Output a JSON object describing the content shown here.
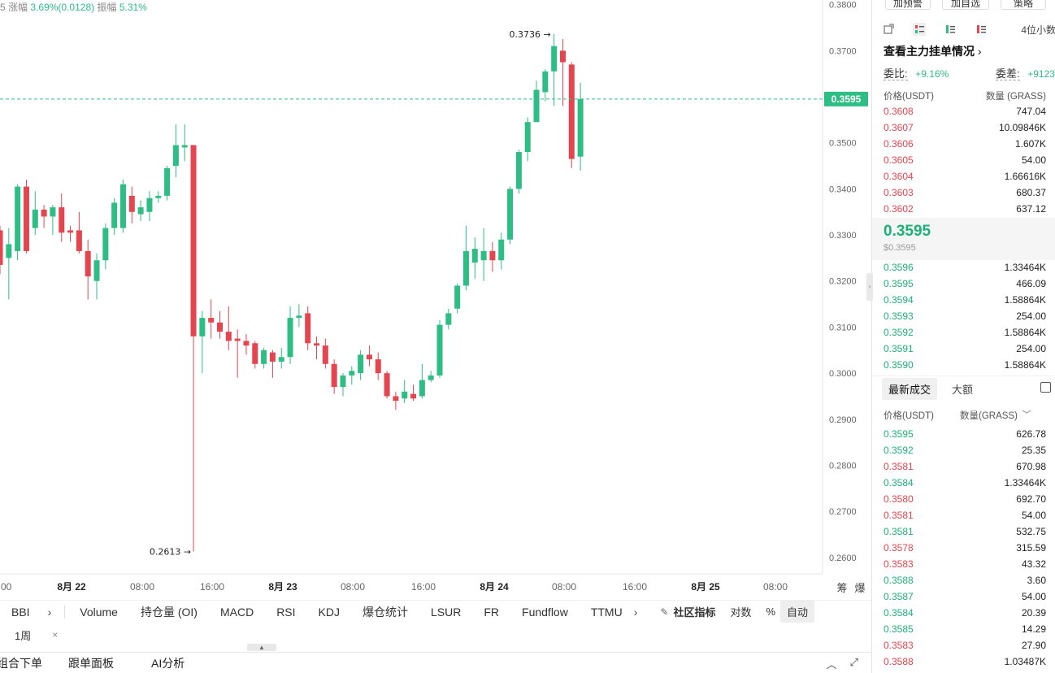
{
  "stats": {
    "prefix": "5",
    "change_label": "涨幅",
    "change_value": "3.69%(0.0128)",
    "amplitude_label": "振幅",
    "amplitude_value": "5.31%"
  },
  "chart_data": {
    "type": "candlestick",
    "y_ticks": [
      "0.3800",
      "0.3700",
      "0.3600",
      "0.3500",
      "0.3400",
      "0.3300",
      "0.3200",
      "0.3100",
      "0.3000",
      "0.2900",
      "0.2800",
      "0.2700",
      "0.2600"
    ],
    "x_ticks": [
      ":00",
      "8月 22",
      "08:00",
      "16:00",
      "8月 23",
      "08:00",
      "16:00",
      "8月 24",
      "08:00",
      "16:00",
      "8月 25",
      "08:00"
    ],
    "x_bold_ticks": [
      "8月 22",
      "8月 23",
      "8月 24",
      "8月 25"
    ],
    "ylim": [
      0.2575,
      0.381
    ],
    "current_price": "0.3595",
    "high_label": "0.3736",
    "low_label": "0.2613",
    "candles": [
      [
        0.331,
        0.332,
        0.3235,
        0.3215
      ],
      [
        0.325,
        0.3315,
        0.328,
        0.316
      ],
      [
        0.3265,
        0.341,
        0.3405,
        0.3245
      ],
      [
        0.3405,
        0.342,
        0.3265,
        0.326
      ],
      [
        0.3315,
        0.3395,
        0.3355,
        0.33
      ],
      [
        0.3355,
        0.3365,
        0.334,
        0.3315
      ],
      [
        0.334,
        0.3365,
        0.336,
        0.33
      ],
      [
        0.336,
        0.339,
        0.3305,
        0.3285
      ],
      [
        0.331,
        0.332,
        0.3305,
        0.3285
      ],
      [
        0.331,
        0.335,
        0.3265,
        0.326
      ],
      [
        0.3265,
        0.329,
        0.321,
        0.316
      ],
      [
        0.32,
        0.326,
        0.3245,
        0.316
      ],
      [
        0.3245,
        0.3325,
        0.3315,
        0.3225
      ],
      [
        0.3315,
        0.338,
        0.337,
        0.33
      ],
      [
        0.3315,
        0.342,
        0.341,
        0.3305
      ],
      [
        0.3385,
        0.3405,
        0.335,
        0.3325
      ],
      [
        0.3345,
        0.3375,
        0.336,
        0.333
      ],
      [
        0.335,
        0.3395,
        0.338,
        0.333
      ],
      [
        0.338,
        0.3395,
        0.3385,
        0.337
      ],
      [
        0.3385,
        0.345,
        0.3445,
        0.3375
      ],
      [
        0.345,
        0.354,
        0.3495,
        0.3425
      ],
      [
        0.349,
        0.354,
        0.3495,
        0.346
      ],
      [
        0.3495,
        0.3495,
        0.308,
        0.2613
      ],
      [
        0.308,
        0.3135,
        0.312,
        0.3
      ],
      [
        0.312,
        0.316,
        0.311,
        0.3075
      ],
      [
        0.311,
        0.3135,
        0.309,
        0.3075
      ],
      [
        0.309,
        0.3145,
        0.307,
        0.305
      ],
      [
        0.3075,
        0.3095,
        0.307,
        0.299
      ],
      [
        0.307,
        0.3085,
        0.306,
        0.304
      ],
      [
        0.3065,
        0.307,
        0.302,
        0.301
      ],
      [
        0.302,
        0.3055,
        0.305,
        0.301
      ],
      [
        0.3045,
        0.305,
        0.3025,
        0.299
      ],
      [
        0.3025,
        0.3055,
        0.3035,
        0.301
      ],
      [
        0.3035,
        0.3145,
        0.312,
        0.302
      ],
      [
        0.312,
        0.315,
        0.3125,
        0.31
      ],
      [
        0.313,
        0.3145,
        0.3065,
        0.305
      ],
      [
        0.3065,
        0.308,
        0.306,
        0.303
      ],
      [
        0.306,
        0.3075,
        0.302,
        0.301
      ],
      [
        0.302,
        0.303,
        0.297,
        0.2955
      ],
      [
        0.297,
        0.3,
        0.2995,
        0.295
      ],
      [
        0.2995,
        0.3015,
        0.3005,
        0.2975
      ],
      [
        0.3,
        0.305,
        0.304,
        0.2985
      ],
      [
        0.304,
        0.306,
        0.303,
        0.3015
      ],
      [
        0.303,
        0.3045,
        0.3,
        0.2985
      ],
      [
        0.3,
        0.3005,
        0.295,
        0.2945
      ],
      [
        0.295,
        0.296,
        0.294,
        0.292
      ],
      [
        0.2945,
        0.2985,
        0.296,
        0.2935
      ],
      [
        0.2955,
        0.2975,
        0.2945,
        0.294
      ],
      [
        0.295,
        0.302,
        0.2985,
        0.2945
      ],
      [
        0.2985,
        0.3005,
        0.2995,
        0.298
      ],
      [
        0.2995,
        0.3115,
        0.3105,
        0.299
      ],
      [
        0.3105,
        0.314,
        0.313,
        0.3095
      ],
      [
        0.314,
        0.3195,
        0.319,
        0.313
      ],
      [
        0.319,
        0.332,
        0.3265,
        0.318
      ],
      [
        0.324,
        0.3295,
        0.327,
        0.3205
      ],
      [
        0.3245,
        0.3315,
        0.3265,
        0.32
      ],
      [
        0.3265,
        0.3285,
        0.3245,
        0.322
      ],
      [
        0.3245,
        0.3305,
        0.329,
        0.3225
      ],
      [
        0.329,
        0.3405,
        0.34,
        0.328
      ],
      [
        0.34,
        0.3485,
        0.348,
        0.339
      ],
      [
        0.348,
        0.3555,
        0.3545,
        0.346
      ],
      [
        0.3545,
        0.3635,
        0.3615,
        0.3545
      ],
      [
        0.361,
        0.366,
        0.3655,
        0.359
      ],
      [
        0.3655,
        0.3736,
        0.371,
        0.358
      ],
      [
        0.37,
        0.3725,
        0.3675,
        0.358
      ],
      [
        0.367,
        0.3675,
        0.3465,
        0.3445
      ],
      [
        0.347,
        0.363,
        0.3595,
        0.344
      ]
    ]
  },
  "indicators": {
    "bbi": "BBI",
    "items": [
      "Volume",
      "持仓量 (OI)",
      "MACD",
      "RSI",
      "KDJ",
      "爆仓统计",
      "LSUR",
      "FR",
      "Fundflow",
      "TTMU"
    ],
    "community": "社区指标",
    "log": "对数",
    "percent": "%",
    "auto": "自动"
  },
  "period": {
    "label": "1周",
    "close": "×"
  },
  "bottom_tabs": {
    "items": [
      "组合下单",
      "跟单面板",
      "AI分析"
    ]
  },
  "chart_right_labels": {
    "a": "筹",
    "b": "爆"
  },
  "orderbook": {
    "top_buttons": [
      "加预警",
      "加自选",
      "策略"
    ],
    "decimals": "4位小数",
    "main_orders_link": "查看主力挂单情况",
    "ratio_label": "委比:",
    "ratio_value": "+9.16%",
    "diff_label": "委差:",
    "diff_value": "+9123",
    "col_price": "价格(USDT)",
    "col_qty": "数量 (GRASS)",
    "asks": [
      {
        "p": "0.3608",
        "q": "747.04"
      },
      {
        "p": "0.3607",
        "q": "10.09846K"
      },
      {
        "p": "0.3606",
        "q": "1.607K"
      },
      {
        "p": "0.3605",
        "q": "54.00"
      },
      {
        "p": "0.3604",
        "q": "1.66616K"
      },
      {
        "p": "0.3603",
        "q": "680.37"
      },
      {
        "p": "0.3602",
        "q": "637.12"
      }
    ],
    "last_price": "0.3595",
    "last_price_usd": "$0.3595",
    "bids": [
      {
        "p": "0.3596",
        "q": "1.33464K"
      },
      {
        "p": "0.3595",
        "q": "466.09"
      },
      {
        "p": "0.3594",
        "q": "1.58864K"
      },
      {
        "p": "0.3593",
        "q": "254.00"
      },
      {
        "p": "0.3592",
        "q": "1.58864K"
      },
      {
        "p": "0.3591",
        "q": "254.00"
      },
      {
        "p": "0.3590",
        "q": "1.58864K"
      }
    ]
  },
  "trades": {
    "tab_latest": "最新成交",
    "tab_large": "大额",
    "col_price": "价格(USDT)",
    "col_qty": "数量(GRASS)",
    "rows": [
      {
        "p": "0.3595",
        "q": "626.78",
        "side": "buy"
      },
      {
        "p": "0.3592",
        "q": "25.35",
        "side": "buy"
      },
      {
        "p": "0.3581",
        "q": "670.98",
        "side": "sell"
      },
      {
        "p": "0.3584",
        "q": "1.33464K",
        "side": "buy"
      },
      {
        "p": "0.3580",
        "q": "692.70",
        "side": "sell"
      },
      {
        "p": "0.3581",
        "q": "54.00",
        "side": "sell"
      },
      {
        "p": "0.3581",
        "q": "532.75",
        "side": "buy"
      },
      {
        "p": "0.3578",
        "q": "315.59",
        "side": "sell"
      },
      {
        "p": "0.3583",
        "q": "43.32",
        "side": "sell"
      },
      {
        "p": "0.3588",
        "q": "3.60",
        "side": "buy"
      },
      {
        "p": "0.3587",
        "q": "54.00",
        "side": "buy"
      },
      {
        "p": "0.3584",
        "q": "20.39",
        "side": "buy"
      },
      {
        "p": "0.3585",
        "q": "14.29",
        "side": "buy"
      },
      {
        "p": "0.3583",
        "q": "27.90",
        "side": "sell"
      },
      {
        "p": "0.3588",
        "q": "1.03487K",
        "side": "sell"
      }
    ]
  },
  "colors": {
    "up": "#2ebd85",
    "down": "#e5454e",
    "grid": "#f0f0f0"
  }
}
